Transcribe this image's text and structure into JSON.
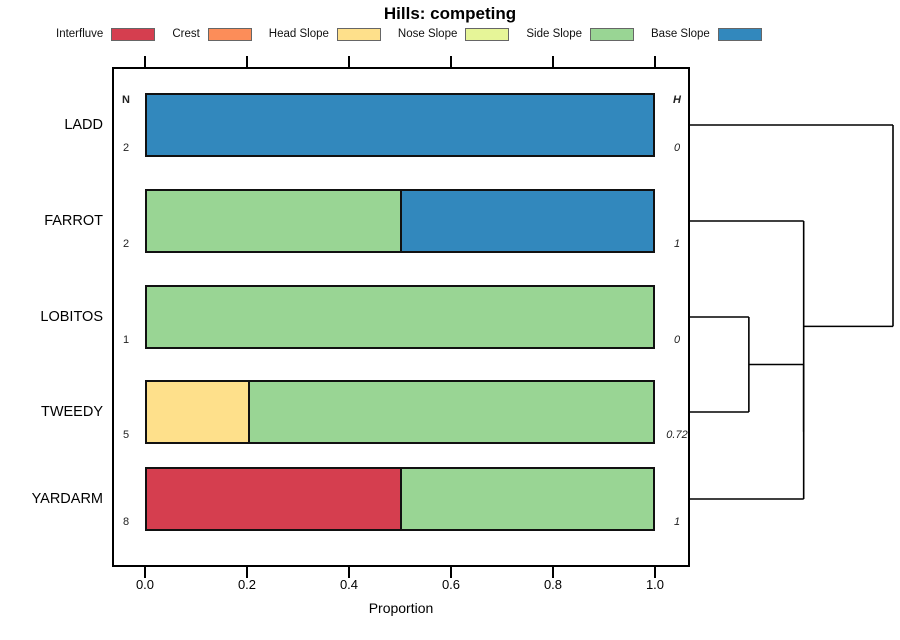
{
  "title": "Hills: competing",
  "axis": {
    "xlabel": "Proportion",
    "tick_labels": [
      "0.0",
      "0.2",
      "0.4",
      "0.6",
      "0.8",
      "1.0"
    ],
    "tick_values": [
      0,
      0.2,
      0.4,
      0.6,
      0.8,
      1.0
    ],
    "range": [
      0,
      1
    ]
  },
  "columns": {
    "n_header": "N",
    "h_header": "H"
  },
  "legend": {
    "position": "top",
    "items": [
      {
        "label": "Interfluve",
        "color": "#D53E4F"
      },
      {
        "label": "Crest",
        "color": "#FC8D59"
      },
      {
        "label": "Head Slope",
        "color": "#FEE08B"
      },
      {
        "label": "Nose Slope",
        "color": "#E6F598"
      },
      {
        "label": "Side Slope",
        "color": "#99D594"
      },
      {
        "label": "Base Slope",
        "color": "#3288BD"
      }
    ]
  },
  "chart_data": {
    "type": "bar",
    "subtype": "horizontal_stacked_proportion_with_dendrogram",
    "title": "Hills: competing",
    "xlabel": "Proportion",
    "xlim": [
      0,
      1
    ],
    "grid": false,
    "categories": [
      "LADD",
      "FARROT",
      "LOBITOS",
      "TWEEDY",
      "YARDARM"
    ],
    "rows": [
      {
        "name": "LADD",
        "n": 2,
        "h": "0",
        "segments": [
          {
            "class": "Base Slope",
            "proportion": 1.0
          }
        ]
      },
      {
        "name": "FARROT",
        "n": 2,
        "h": "1",
        "segments": [
          {
            "class": "Side Slope",
            "proportion": 0.5
          },
          {
            "class": "Base Slope",
            "proportion": 0.5
          }
        ]
      },
      {
        "name": "LOBITOS",
        "n": 1,
        "h": "0",
        "segments": [
          {
            "class": "Side Slope",
            "proportion": 1.0
          }
        ]
      },
      {
        "name": "TWEEDY",
        "n": 5,
        "h": "0.72",
        "segments": [
          {
            "class": "Head Slope",
            "proportion": 0.2
          },
          {
            "class": "Side Slope",
            "proportion": 0.8
          }
        ]
      },
      {
        "name": "YARDARM",
        "n": 8,
        "h": "1",
        "segments": [
          {
            "class": "Interfluve",
            "proportion": 0.5
          },
          {
            "class": "Side Slope",
            "proportion": 0.5
          }
        ]
      }
    ],
    "class_colors": {
      "Interfluve": "#D53E4F",
      "Crest": "#FC8D59",
      "Head Slope": "#FEE08B",
      "Nose Slope": "#E6F598",
      "Side Slope": "#99D594",
      "Base Slope": "#3288BD"
    },
    "dendrogram": {
      "leaves": [
        "LADD",
        "FARROT",
        "LOBITOS",
        "TWEEDY",
        "YARDARM"
      ],
      "merges": [
        {
          "id": "A",
          "children": [
            "LOBITOS",
            "TWEEDY"
          ],
          "height": 0.29
        },
        {
          "id": "B",
          "children": [
            "A",
            "YARDARM"
          ],
          "height": 0.56
        },
        {
          "id": "C",
          "children": [
            "FARROT",
            "B"
          ],
          "height": 0.56
        },
        {
          "id": "root",
          "children": [
            "LADD",
            "C"
          ],
          "height": 1.0
        }
      ]
    }
  }
}
